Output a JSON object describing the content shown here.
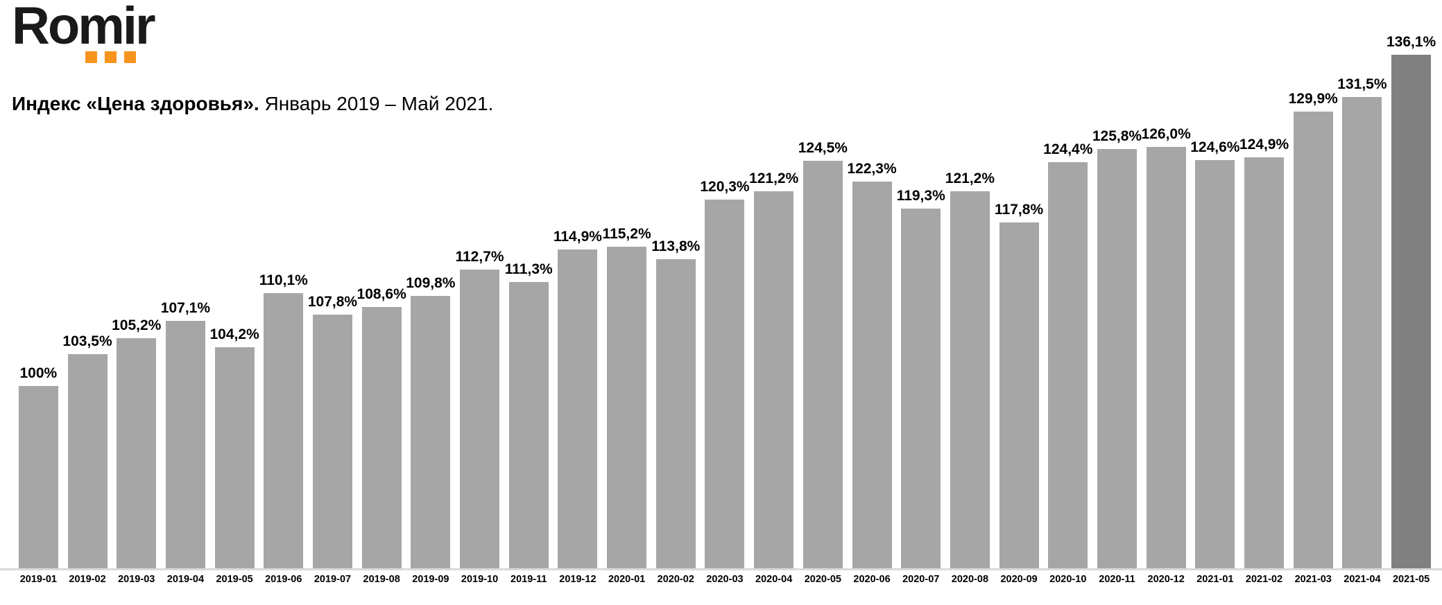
{
  "logo": {
    "text": "Romir",
    "dots_color": "#F7941E"
  },
  "title": {
    "bold": "Индекс «Цена здоровья».",
    "regular": " Январь 2019 – Май 2021."
  },
  "chart_data": {
    "type": "bar",
    "title": "Индекс «Цена здоровья». Январь 2019 – Май 2021.",
    "xlabel": "",
    "ylabel": "",
    "ylim": [
      80,
      139
    ],
    "grid": false,
    "legend": false,
    "bar_color": "#A6A6A6",
    "last_bar_color": "#808080",
    "axis_line_color": "#D9D9D9",
    "categories": [
      "2019-01",
      "2019-02",
      "2019-03",
      "2019-04",
      "2019-05",
      "2019-06",
      "2019-07",
      "2019-08",
      "2019-09",
      "2019-10",
      "2019-11",
      "2019-12",
      "2020-01",
      "2020-02",
      "2020-03",
      "2020-04",
      "2020-05",
      "2020-06",
      "2020-07",
      "2020-08",
      "2020-09",
      "2020-10",
      "2020-11",
      "2020-12",
      "2021-01",
      "2021-02",
      "2021-03",
      "2021-04",
      "2021-05"
    ],
    "values": [
      100,
      103.5,
      105.2,
      107.1,
      104.2,
      110.1,
      107.8,
      108.6,
      109.8,
      112.7,
      111.3,
      114.9,
      115.2,
      113.8,
      120.3,
      121.2,
      124.5,
      122.3,
      119.3,
      121.2,
      117.8,
      124.4,
      125.8,
      126.0,
      124.6,
      124.9,
      129.9,
      131.5,
      136.1
    ],
    "labels": [
      "100%",
      "103,5%",
      "105,2%",
      "107,1%",
      "104,2%",
      "110,1%",
      "107,8%",
      "108,6%",
      "109,8%",
      "112,7%",
      "111,3%",
      "114,9%",
      "115,2%",
      "113,8%",
      "120,3%",
      "121,2%",
      "124,5%",
      "122,3%",
      "119,3%",
      "121,2%",
      "117,8%",
      "124,4%",
      "125,8%",
      "126,0%",
      "124,6%",
      "124,9%",
      "129,9%",
      "131,5%",
      "136,1%"
    ]
  }
}
